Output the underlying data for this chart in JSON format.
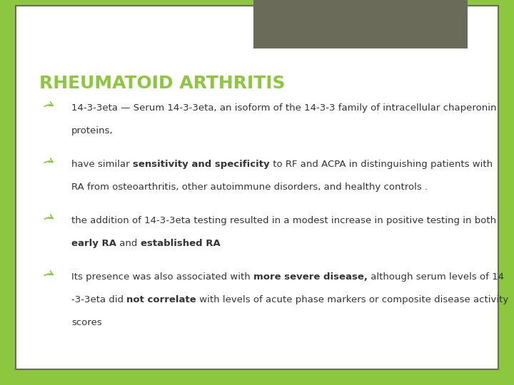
{
  "title": "RHEUMATOID ARTHRITIS",
  "title_color": "#8dc63f",
  "title_fontsize": 18,
  "bg_outer": "#8dc63f",
  "bg_slide": "#ffffff",
  "header_box_color": "#6b6b5a",
  "bullet_color": "#8dc63f",
  "text_color": "#333333",
  "text_fontsize": 9.5,
  "slide_border_color": "#6b6b5a",
  "bullets": [
    {
      "lines": [
        {
          "text": "14-3-3eta — Serum 14-3-3eta, an isoform of the 14-3-3 family of intracellular chaperonin",
          "bold_parts": []
        },
        {
          "text": "proteins,",
          "bold_parts": []
        }
      ]
    },
    {
      "lines": [
        {
          "text": "have similar sensitivity and specificity to RF and ACPA in distinguishing patients with",
          "bold_parts": [
            "sensitivity and specificity"
          ]
        },
        {
          "text": "RA from osteoarthritis, other autoimmune disorders, and healthy controls .",
          "bold_parts": []
        }
      ]
    },
    {
      "lines": [
        {
          "text": "the addition of 14-3-3eta testing resulted in a modest increase in positive testing in both",
          "bold_parts": []
        },
        {
          "text": "early RA and established RA",
          "bold_parts": [
            "early RA",
            "established RA"
          ]
        }
      ]
    },
    {
      "lines": [
        {
          "text": "Its presence was also associated with more severe disease, although serum levels of 14",
          "bold_parts": [
            "more severe disease,"
          ]
        },
        {
          "text": "-3-3eta did not correlate with levels of acute phase markers or composite disease activity",
          "bold_parts": [
            "not correlate"
          ]
        },
        {
          "text": "scores",
          "bold_parts": []
        }
      ]
    }
  ]
}
